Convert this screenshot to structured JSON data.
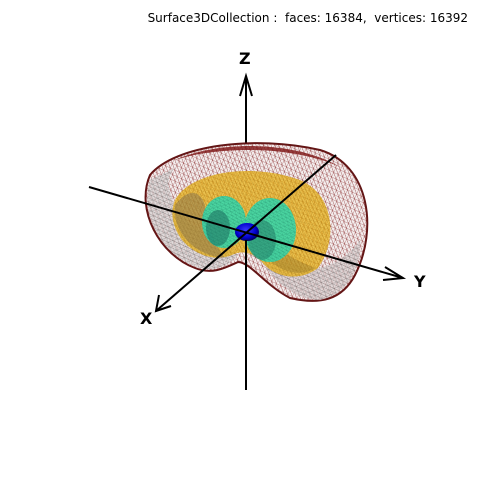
{
  "header": {
    "title": "Surface3DCollection :  faces: 16384,  vertices: 16392"
  },
  "axes": {
    "x_label": "X",
    "y_label": "Y",
    "z_label": "Z"
  },
  "colors": {
    "outer_mesh": "#7a1010",
    "middle_mesh": "#e0a400",
    "inner_mesh": "#2fd9b0",
    "core": "#0000ff",
    "axis": "#000000"
  }
}
